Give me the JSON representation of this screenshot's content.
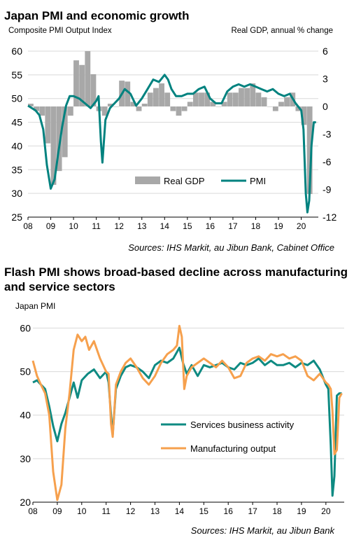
{
  "charts": [
    {
      "title": "Japan PMI and economic growth",
      "ylabel_left": "Composite PMI Output Index",
      "ylabel_right": "Real GDP, annual % change",
      "source": "Sources: IHS Markit, au Jibun Bank, Cabinet Office",
      "legend": [
        "Real GDP",
        "PMI"
      ]
    },
    {
      "title": "Flash PMI shows broad-based decline across manufacturing and service sectors",
      "ylabel_left": "Japan PMI",
      "source": "Sources: IHS Markit, au Jibun Bank",
      "legend": [
        "Services business activity",
        "Manufacturing output"
      ]
    }
  ],
  "colors": {
    "pmi": "#00827f",
    "gdp": "#a8a8a8",
    "services": "#0e8a82",
    "manufacturing": "#f6a04d",
    "grid": "#d9d9d9"
  },
  "chart_data": [
    {
      "type": "bar+line",
      "title": "Japan PMI and economic growth",
      "xlabel": "",
      "ylabel": "Composite PMI Output Index",
      "ylabel_right": "Real GDP, annual % change",
      "x_ticks": [
        "08",
        "09",
        "10",
        "11",
        "12",
        "13",
        "14",
        "15",
        "16",
        "17",
        "18",
        "19",
        "20"
      ],
      "y_ticks": [
        25,
        30,
        35,
        40,
        45,
        50,
        55,
        60
      ],
      "y_right_ticks": [
        -12,
        -9,
        -6,
        -3,
        0,
        3,
        6
      ],
      "ylim": [
        25,
        60
      ],
      "ylim_right": [
        -12,
        6
      ],
      "legend_position": "bottom-center",
      "grid": true,
      "series": [
        {
          "name": "Real GDP",
          "type": "bar",
          "axis": "right",
          "x": [
            2008.0,
            2008.25,
            2008.5,
            2008.75,
            2009.0,
            2009.25,
            2009.5,
            2009.75,
            2010.0,
            2010.25,
            2010.5,
            2010.75,
            2011.0,
            2011.25,
            2011.5,
            2011.75,
            2012.0,
            2012.25,
            2012.5,
            2012.75,
            2013.0,
            2013.25,
            2013.5,
            2013.75,
            2014.0,
            2014.25,
            2014.5,
            2014.75,
            2015.0,
            2015.25,
            2015.5,
            2015.75,
            2016.0,
            2016.25,
            2016.5,
            2016.75,
            2017.0,
            2017.25,
            2017.5,
            2017.75,
            2018.0,
            2018.25,
            2018.5,
            2018.75,
            2019.0,
            2019.25,
            2019.5,
            2019.75,
            2020.0,
            2020.25
          ],
          "values": [
            0.3,
            -0.5,
            -1.0,
            -4.0,
            -8.5,
            -7.0,
            -5.5,
            -1.0,
            5.0,
            4.5,
            6.0,
            3.5,
            -0.5,
            -1.0,
            0.3,
            0.0,
            2.8,
            2.7,
            0.5,
            -0.5,
            0.3,
            1.5,
            2.0,
            2.5,
            1.5,
            -0.5,
            -1.0,
            -0.5,
            0.5,
            1.5,
            1.5,
            1.5,
            0.5,
            0.0,
            0.5,
            1.5,
            1.5,
            2.0,
            2.0,
            2.5,
            1.5,
            1.0,
            0.0,
            -0.5,
            0.5,
            1.0,
            1.5,
            -0.5,
            -2.0,
            -9.5
          ]
        },
        {
          "name": "PMI",
          "type": "line",
          "axis": "left",
          "x": [
            2008.0,
            2008.17,
            2008.33,
            2008.5,
            2008.67,
            2008.83,
            2009.0,
            2009.17,
            2009.33,
            2009.5,
            2009.67,
            2009.83,
            2010.0,
            2010.25,
            2010.5,
            2010.75,
            2011.0,
            2011.1,
            2011.2,
            2011.27,
            2011.4,
            2011.6,
            2011.8,
            2012.0,
            2012.25,
            2012.5,
            2012.75,
            2013.0,
            2013.25,
            2013.5,
            2013.75,
            2014.0,
            2014.15,
            2014.3,
            2014.5,
            2014.75,
            2015.0,
            2015.25,
            2015.5,
            2015.75,
            2016.0,
            2016.25,
            2016.5,
            2016.75,
            2017.0,
            2017.25,
            2017.5,
            2017.75,
            2018.0,
            2018.25,
            2018.5,
            2018.75,
            2019.0,
            2019.25,
            2019.5,
            2019.75,
            2020.0,
            2020.1,
            2020.2,
            2020.27,
            2020.35,
            2020.45,
            2020.55,
            2020.65
          ],
          "values": [
            48.5,
            48.0,
            47.5,
            46.5,
            43.5,
            36.0,
            31.0,
            33.0,
            38.5,
            44.0,
            48.5,
            50.5,
            50.5,
            50.0,
            49.0,
            48.0,
            49.5,
            50.5,
            41.0,
            36.5,
            45.5,
            48.0,
            49.0,
            50.0,
            52.0,
            51.0,
            48.5,
            50.0,
            52.0,
            54.0,
            53.5,
            55.0,
            54.0,
            52.0,
            50.5,
            50.5,
            51.0,
            51.0,
            52.0,
            52.5,
            50.0,
            49.0,
            49.0,
            51.5,
            52.5,
            53.0,
            52.5,
            53.0,
            52.5,
            52.0,
            51.5,
            52.0,
            51.0,
            50.5,
            51.0,
            49.0,
            47.5,
            43.5,
            30.0,
            26.0,
            28.5,
            40.0,
            45.0,
            45.0
          ]
        }
      ]
    },
    {
      "type": "line",
      "title": "Flash PMI shows broad-based decline across manufacturing and service sectors",
      "xlabel": "",
      "ylabel": "Japan PMI",
      "x_ticks": [
        "08",
        "09",
        "10",
        "11",
        "12",
        "13",
        "14",
        "15",
        "16",
        "17",
        "18",
        "19",
        "20"
      ],
      "y_ticks": [
        20,
        30,
        40,
        50,
        60
      ],
      "ylim": [
        20,
        62
      ],
      "legend_position": "bottom-center",
      "grid": true,
      "series": [
        {
          "name": "Services business activity",
          "x": [
            2008.0,
            2008.17,
            2008.33,
            2008.5,
            2008.67,
            2008.83,
            2009.0,
            2009.17,
            2009.33,
            2009.5,
            2009.67,
            2009.83,
            2010.0,
            2010.25,
            2010.5,
            2010.75,
            2011.0,
            2011.1,
            2011.2,
            2011.27,
            2011.4,
            2011.6,
            2011.8,
            2012.0,
            2012.25,
            2012.5,
            2012.75,
            2013.0,
            2013.25,
            2013.5,
            2013.75,
            2014.0,
            2014.15,
            2014.3,
            2014.5,
            2014.75,
            2015.0,
            2015.25,
            2015.5,
            2015.75,
            2016.0,
            2016.25,
            2016.5,
            2016.75,
            2017.0,
            2017.25,
            2017.5,
            2017.75,
            2018.0,
            2018.25,
            2018.5,
            2018.75,
            2019.0,
            2019.25,
            2019.5,
            2019.75,
            2020.0,
            2020.1,
            2020.2,
            2020.27,
            2020.35,
            2020.45,
            2020.55,
            2020.65
          ],
          "values": [
            47.5,
            48.0,
            47.0,
            46.0,
            42.0,
            37.5,
            34.0,
            38.0,
            40.5,
            44.0,
            47.5,
            44.0,
            48.0,
            49.5,
            50.5,
            48.5,
            50.0,
            47.5,
            40.0,
            35.5,
            46.0,
            49.0,
            51.0,
            51.5,
            51.0,
            50.0,
            48.5,
            51.5,
            52.5,
            52.0,
            53.0,
            55.5,
            52.0,
            49.5,
            51.5,
            49.0,
            51.5,
            51.0,
            51.5,
            52.0,
            51.0,
            50.5,
            52.0,
            51.5,
            52.0,
            53.0,
            51.5,
            52.5,
            51.5,
            51.5,
            52.0,
            51.0,
            52.0,
            51.5,
            52.5,
            50.5,
            47.0,
            46.0,
            33.0,
            21.5,
            26.0,
            44.5,
            45.0,
            45.0
          ]
        },
        {
          "name": "Manufacturing output",
          "x": [
            2008.0,
            2008.17,
            2008.33,
            2008.5,
            2008.67,
            2008.83,
            2009.0,
            2009.17,
            2009.33,
            2009.5,
            2009.67,
            2009.83,
            2010.0,
            2010.15,
            2010.3,
            2010.5,
            2010.75,
            2011.0,
            2011.1,
            2011.2,
            2011.27,
            2011.4,
            2011.6,
            2011.8,
            2012.0,
            2012.25,
            2012.5,
            2012.75,
            2013.0,
            2013.25,
            2013.5,
            2013.75,
            2013.9,
            2014.0,
            2014.1,
            2014.2,
            2014.3,
            2014.5,
            2014.75,
            2015.0,
            2015.25,
            2015.5,
            2015.75,
            2016.0,
            2016.25,
            2016.5,
            2016.75,
            2017.0,
            2017.25,
            2017.5,
            2017.75,
            2018.0,
            2018.25,
            2018.5,
            2018.75,
            2019.0,
            2019.25,
            2019.5,
            2019.75,
            2020.0,
            2020.1,
            2020.2,
            2020.27,
            2020.35,
            2020.45,
            2020.55,
            2020.65
          ],
          "values": [
            52.5,
            49.0,
            47.0,
            45.0,
            40.0,
            27.0,
            20.5,
            24.0,
            37.0,
            45.0,
            55.0,
            58.5,
            57.0,
            58.0,
            55.0,
            57.0,
            53.0,
            50.0,
            49.5,
            38.0,
            35.0,
            47.0,
            50.0,
            52.0,
            53.0,
            51.0,
            48.5,
            47.0,
            49.0,
            52.0,
            54.0,
            55.0,
            56.0,
            60.5,
            58.0,
            46.0,
            49.0,
            51.0,
            52.0,
            53.0,
            52.0,
            51.0,
            52.5,
            51.0,
            48.5,
            49.0,
            52.0,
            53.0,
            53.5,
            52.5,
            54.0,
            53.5,
            54.0,
            53.0,
            53.5,
            52.5,
            49.0,
            48.0,
            49.5,
            47.5,
            47.0,
            46.0,
            41.0,
            31.0,
            32.0,
            44.0,
            45.0
          ]
        }
      ]
    }
  ]
}
